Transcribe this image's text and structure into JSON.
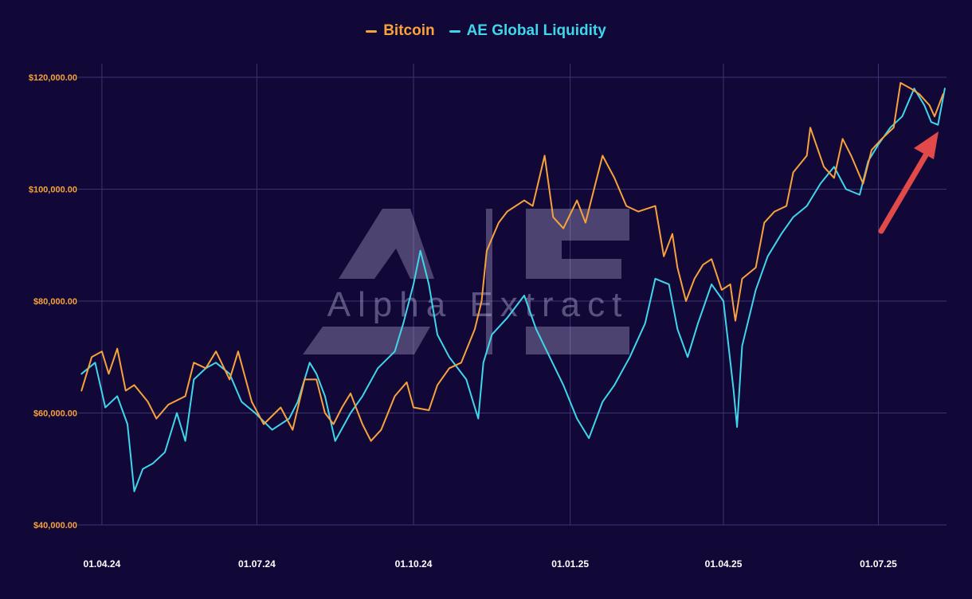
{
  "colors": {
    "background": "#120838",
    "grid": "#3a3470",
    "bitcoin": "#f7a23c",
    "liquidity": "#3fd6ea",
    "ytick": "#f7a23c",
    "xtick": "#ffffff",
    "arrow": "#e24a4a",
    "watermark": "#c7c1e6"
  },
  "watermark": {
    "logo_letters": "AE",
    "text": "Alpha Extract"
  },
  "chart_data": {
    "type": "line",
    "legend_position": "top-center",
    "grid": true,
    "ylim": [
      40000,
      120000
    ],
    "y_ticks": [
      {
        "value": 40000,
        "label": "$40,000.00"
      },
      {
        "value": 60000,
        "label": "$60,000.00"
      },
      {
        "value": 80000,
        "label": "$80,000.00"
      },
      {
        "value": 100000,
        "label": "$100,000.00"
      },
      {
        "value": 120000,
        "label": "$120,000.00"
      }
    ],
    "xlim": [
      "2024-03-18",
      "2025-08-10"
    ],
    "x_ticks": [
      {
        "date": "2024-04-01",
        "label": "01.04.24"
      },
      {
        "date": "2024-07-01",
        "label": "01.07.24"
      },
      {
        "date": "2024-10-01",
        "label": "01.10.24"
      },
      {
        "date": "2025-01-01",
        "label": "01.01.25"
      },
      {
        "date": "2025-04-01",
        "label": "01.04.25"
      },
      {
        "date": "2025-07-01",
        "label": "01.07.25"
      }
    ],
    "series": [
      {
        "name": "Bitcoin",
        "color": "#f7a23c",
        "points": [
          [
            "2024-03-20",
            64000
          ],
          [
            "2024-03-26",
            70000
          ],
          [
            "2024-04-01",
            71000
          ],
          [
            "2024-04-05",
            67000
          ],
          [
            "2024-04-10",
            71500
          ],
          [
            "2024-04-15",
            64000
          ],
          [
            "2024-04-20",
            65000
          ],
          [
            "2024-04-28",
            62000
          ],
          [
            "2024-05-03",
            59000
          ],
          [
            "2024-05-10",
            61500
          ],
          [
            "2024-05-20",
            63000
          ],
          [
            "2024-05-25",
            69000
          ],
          [
            "2024-06-01",
            68000
          ],
          [
            "2024-06-07",
            71000
          ],
          [
            "2024-06-15",
            66000
          ],
          [
            "2024-06-20",
            71000
          ],
          [
            "2024-06-28",
            62000
          ],
          [
            "2024-07-05",
            58000
          ],
          [
            "2024-07-15",
            61000
          ],
          [
            "2024-07-22",
            57000
          ],
          [
            "2024-07-29",
            66000
          ],
          [
            "2024-08-05",
            66000
          ],
          [
            "2024-08-10",
            60000
          ],
          [
            "2024-08-15",
            58000
          ],
          [
            "2024-08-20",
            61000
          ],
          [
            "2024-08-25",
            63500
          ],
          [
            "2024-09-01",
            58000
          ],
          [
            "2024-09-06",
            55000
          ],
          [
            "2024-09-12",
            57000
          ],
          [
            "2024-09-20",
            63000
          ],
          [
            "2024-09-27",
            65500
          ],
          [
            "2024-10-01",
            61000
          ],
          [
            "2024-10-10",
            60500
          ],
          [
            "2024-10-15",
            65000
          ],
          [
            "2024-10-22",
            68000
          ],
          [
            "2024-10-29",
            69000
          ],
          [
            "2024-11-06",
            75000
          ],
          [
            "2024-11-10",
            80000
          ],
          [
            "2024-11-13",
            89000
          ],
          [
            "2024-11-20",
            94000
          ],
          [
            "2024-11-25",
            96000
          ],
          [
            "2024-12-05",
            98000
          ],
          [
            "2024-12-10",
            97000
          ],
          [
            "2024-12-17",
            106000
          ],
          [
            "2024-12-22",
            95000
          ],
          [
            "2024-12-28",
            93000
          ],
          [
            "2025-01-05",
            98000
          ],
          [
            "2025-01-10",
            94000
          ],
          [
            "2025-01-15",
            100000
          ],
          [
            "2025-01-20",
            106000
          ],
          [
            "2025-01-27",
            102000
          ],
          [
            "2025-02-03",
            97000
          ],
          [
            "2025-02-10",
            96000
          ],
          [
            "2025-02-20",
            97000
          ],
          [
            "2025-02-25",
            88000
          ],
          [
            "2025-03-02",
            92000
          ],
          [
            "2025-03-05",
            86000
          ],
          [
            "2025-03-10",
            80000
          ],
          [
            "2025-03-15",
            84000
          ],
          [
            "2025-03-20",
            86500
          ],
          [
            "2025-03-25",
            87500
          ],
          [
            "2025-03-31",
            82000
          ],
          [
            "2025-04-05",
            83000
          ],
          [
            "2025-04-08",
            76500
          ],
          [
            "2025-04-12",
            84000
          ],
          [
            "2025-04-20",
            86000
          ],
          [
            "2025-04-25",
            94000
          ],
          [
            "2025-05-01",
            96000
          ],
          [
            "2025-05-08",
            97000
          ],
          [
            "2025-05-12",
            103000
          ],
          [
            "2025-05-20",
            106000
          ],
          [
            "2025-05-22",
            111000
          ],
          [
            "2025-05-30",
            104000
          ],
          [
            "2025-06-05",
            102000
          ],
          [
            "2025-06-10",
            109000
          ],
          [
            "2025-06-15",
            106000
          ],
          [
            "2025-06-22",
            101000
          ],
          [
            "2025-06-27",
            107000
          ],
          [
            "2025-07-03",
            109000
          ],
          [
            "2025-07-10",
            111000
          ],
          [
            "2025-07-14",
            119000
          ],
          [
            "2025-07-20",
            118000
          ],
          [
            "2025-07-25",
            117000
          ],
          [
            "2025-07-31",
            115000
          ],
          [
            "2025-08-03",
            113000
          ],
          [
            "2025-08-08",
            117000
          ]
        ]
      },
      {
        "name": "AE Global Liquidity",
        "color": "#3fd6ea",
        "points": [
          [
            "2024-03-20",
            67000
          ],
          [
            "2024-03-28",
            69000
          ],
          [
            "2024-04-03",
            61000
          ],
          [
            "2024-04-10",
            63000
          ],
          [
            "2024-04-16",
            58000
          ],
          [
            "2024-04-20",
            46000
          ],
          [
            "2024-04-25",
            50000
          ],
          [
            "2024-05-01",
            51000
          ],
          [
            "2024-05-08",
            53000
          ],
          [
            "2024-05-15",
            60000
          ],
          [
            "2024-05-20",
            55000
          ],
          [
            "2024-05-25",
            66000
          ],
          [
            "2024-06-01",
            68000
          ],
          [
            "2024-06-07",
            69000
          ],
          [
            "2024-06-15",
            67000
          ],
          [
            "2024-06-22",
            62000
          ],
          [
            "2024-06-30",
            60000
          ],
          [
            "2024-07-10",
            57000
          ],
          [
            "2024-07-20",
            59000
          ],
          [
            "2024-07-25",
            62000
          ],
          [
            "2024-08-01",
            69000
          ],
          [
            "2024-08-05",
            67000
          ],
          [
            "2024-08-10",
            63000
          ],
          [
            "2024-08-16",
            55000
          ],
          [
            "2024-08-25",
            60000
          ],
          [
            "2024-09-01",
            63000
          ],
          [
            "2024-09-10",
            68000
          ],
          [
            "2024-09-20",
            71000
          ],
          [
            "2024-09-25",
            76000
          ],
          [
            "2024-10-01",
            83000
          ],
          [
            "2024-10-05",
            89000
          ],
          [
            "2024-10-10",
            83000
          ],
          [
            "2024-10-15",
            74000
          ],
          [
            "2024-10-22",
            70000
          ],
          [
            "2024-11-01",
            66000
          ],
          [
            "2024-11-05",
            62000
          ],
          [
            "2024-11-08",
            59000
          ],
          [
            "2024-11-11",
            69000
          ],
          [
            "2024-11-16",
            74000
          ],
          [
            "2024-11-25",
            77000
          ],
          [
            "2024-12-05",
            81000
          ],
          [
            "2024-12-12",
            75000
          ],
          [
            "2024-12-20",
            70000
          ],
          [
            "2024-12-28",
            65000
          ],
          [
            "2025-01-05",
            59000
          ],
          [
            "2025-01-12",
            55500
          ],
          [
            "2025-01-20",
            62000
          ],
          [
            "2025-01-27",
            65000
          ],
          [
            "2025-02-05",
            70000
          ],
          [
            "2025-02-14",
            76000
          ],
          [
            "2025-02-20",
            84000
          ],
          [
            "2025-02-28",
            83000
          ],
          [
            "2025-03-05",
            75000
          ],
          [
            "2025-03-11",
            70000
          ],
          [
            "2025-03-17",
            76000
          ],
          [
            "2025-03-25",
            83000
          ],
          [
            "2025-04-01",
            80000
          ],
          [
            "2025-04-07",
            64000
          ],
          [
            "2025-04-09",
            57500
          ],
          [
            "2025-04-12",
            72000
          ],
          [
            "2025-04-20",
            82000
          ],
          [
            "2025-04-27",
            88000
          ],
          [
            "2025-05-05",
            92000
          ],
          [
            "2025-05-12",
            95000
          ],
          [
            "2025-05-20",
            97000
          ],
          [
            "2025-05-28",
            101000
          ],
          [
            "2025-06-05",
            104000
          ],
          [
            "2025-06-12",
            100000
          ],
          [
            "2025-06-20",
            99000
          ],
          [
            "2025-06-25",
            105000
          ],
          [
            "2025-07-01",
            108000
          ],
          [
            "2025-07-08",
            111000
          ],
          [
            "2025-07-15",
            113000
          ],
          [
            "2025-07-22",
            118000
          ],
          [
            "2025-07-28",
            115000
          ],
          [
            "2025-08-01",
            112000
          ],
          [
            "2025-08-05",
            111500
          ],
          [
            "2025-08-09",
            118000
          ]
        ]
      }
    ]
  }
}
